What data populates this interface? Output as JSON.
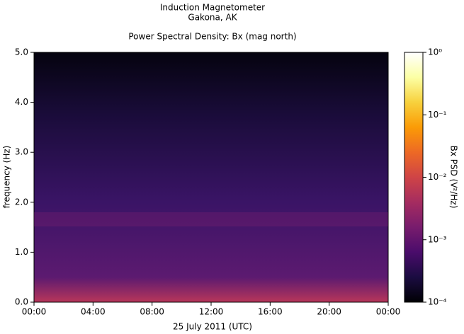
{
  "chart_data": {
    "type": "spectrogram",
    "title": "Induction Magnetometer",
    "subtitle": "Gakona, AK",
    "plot_title": "Power Spectral Density: Bx (mag north)",
    "xlabel": "25 July 2011 (UTC)",
    "ylabel": "frequency (Hz)",
    "xlim": [
      0,
      24
    ],
    "xticks": [
      {
        "value": 0,
        "label": "00:00"
      },
      {
        "value": 4,
        "label": "04:00"
      },
      {
        "value": 8,
        "label": "08:00"
      },
      {
        "value": 12,
        "label": "12:00"
      },
      {
        "value": 16,
        "label": "16:00"
      },
      {
        "value": 20,
        "label": "20:00"
      },
      {
        "value": 24,
        "label": "00:00"
      }
    ],
    "ylim": [
      0,
      5
    ],
    "yticks": [
      {
        "value": 0,
        "label": "0.0"
      },
      {
        "value": 1,
        "label": "1.0"
      },
      {
        "value": 2,
        "label": "2.0"
      },
      {
        "value": 3,
        "label": "3.0"
      },
      {
        "value": 4,
        "label": "4.0"
      },
      {
        "value": 5,
        "label": "5.0"
      }
    ],
    "colorbar": {
      "label": "Bx PSD (V²/Hz)",
      "scale": "log",
      "lim": [
        0.0001,
        1
      ],
      "ticks": [
        {
          "value": 0.0001,
          "label": "10⁻⁴"
        },
        {
          "value": 0.001,
          "label": "10⁻³"
        },
        {
          "value": 0.01,
          "label": "10⁻²"
        },
        {
          "value": 0.1,
          "label": "10⁻¹"
        },
        {
          "value": 1,
          "label": "10⁰"
        }
      ],
      "colors": [
        "#000004",
        "#1b0c41",
        "#4a0c6b",
        "#781c6d",
        "#a52c60",
        "#cf4446",
        "#ed6925",
        "#fb9b06",
        "#f7d13d",
        "#fcffa4",
        "#ffffff"
      ]
    }
  }
}
